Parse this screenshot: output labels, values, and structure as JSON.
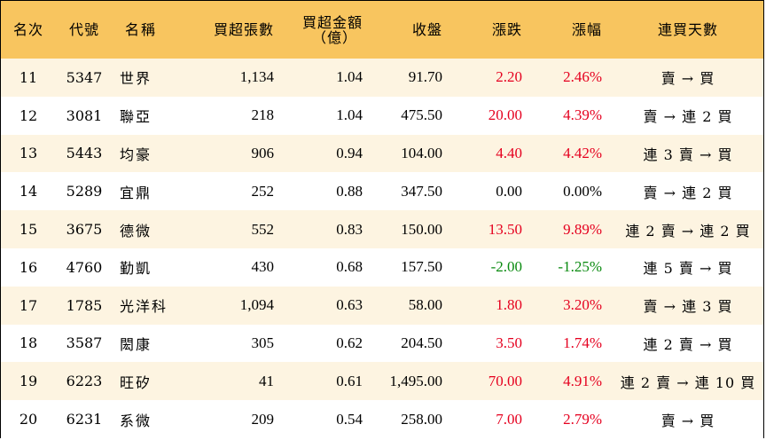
{
  "headers": {
    "rank": "名次",
    "code": "代號",
    "name": "名稱",
    "net_buy_lots": "買超張數",
    "net_buy_amount_line1": "買超金額",
    "net_buy_amount_line2": "（億）",
    "close": "收盤",
    "change": "漲跌",
    "change_pct": "漲幅",
    "streak": "連買天數"
  },
  "rows": [
    {
      "rank": "11",
      "code": "5347",
      "name": "世界",
      "lots": "1,134",
      "amount": "1.04",
      "close": "91.70",
      "change": "2.20",
      "pct": "2.46%",
      "dir": "up",
      "streak": "賣 → 買"
    },
    {
      "rank": "12",
      "code": "3081",
      "name": "聯亞",
      "lots": "218",
      "amount": "1.04",
      "close": "475.50",
      "change": "20.00",
      "pct": "4.39%",
      "dir": "up",
      "streak": "賣 → 連 2 買"
    },
    {
      "rank": "13",
      "code": "5443",
      "name": "均豪",
      "lots": "906",
      "amount": "0.94",
      "close": "104.00",
      "change": "4.40",
      "pct": "4.42%",
      "dir": "up",
      "streak": "連 3 賣 → 買"
    },
    {
      "rank": "14",
      "code": "5289",
      "name": "宜鼎",
      "lots": "252",
      "amount": "0.88",
      "close": "347.50",
      "change": "0.00",
      "pct": "0.00%",
      "dir": "flat",
      "streak": "賣 → 連 2 買"
    },
    {
      "rank": "15",
      "code": "3675",
      "name": "德微",
      "lots": "552",
      "amount": "0.83",
      "close": "150.00",
      "change": "13.50",
      "pct": "9.89%",
      "dir": "up",
      "streak": "連 2 賣 → 連 2 買"
    },
    {
      "rank": "16",
      "code": "4760",
      "name": "勤凱",
      "lots": "430",
      "amount": "0.68",
      "close": "157.50",
      "change": "-2.00",
      "pct": "-1.25%",
      "dir": "down",
      "streak": "連 5 賣 → 買"
    },
    {
      "rank": "17",
      "code": "1785",
      "name": "光洋科",
      "lots": "1,094",
      "amount": "0.63",
      "close": "58.00",
      "change": "1.80",
      "pct": "3.20%",
      "dir": "up",
      "streak": "賣 → 連 3 買"
    },
    {
      "rank": "18",
      "code": "3587",
      "name": "閎康",
      "lots": "305",
      "amount": "0.62",
      "close": "204.50",
      "change": "3.50",
      "pct": "1.74%",
      "dir": "up",
      "streak": "連 2 賣 → 買"
    },
    {
      "rank": "19",
      "code": "6223",
      "name": "旺矽",
      "lots": "41",
      "amount": "0.61",
      "close": "1,495.00",
      "change": "70.00",
      "pct": "4.91%",
      "dir": "up",
      "streak": "連 2 賣 → 連 10 買"
    },
    {
      "rank": "20",
      "code": "6231",
      "name": "系微",
      "lots": "209",
      "amount": "0.54",
      "close": "258.00",
      "change": "7.00",
      "pct": "2.79%",
      "dir": "up",
      "streak": "賣 → 買"
    }
  ],
  "colors": {
    "header_bg": "#F8C55F",
    "odd_row_bg": "#FDF4E1",
    "up": "#E5001F",
    "down": "#0A8A10"
  }
}
